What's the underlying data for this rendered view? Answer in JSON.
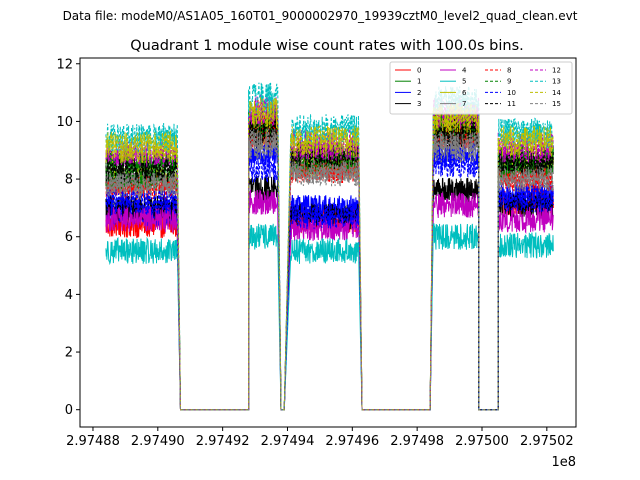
{
  "suptitle": "Data file: modeM0/AS1A05_160T01_9000002970_19939cztM0_level2_quad_clean.evt",
  "chart_data": {
    "type": "line",
    "title": "Quadrant 1 module wise count rates with 100.0s bins.",
    "xlabel": "",
    "ylabel": "",
    "x_offset_label": "1e8",
    "xlim": [
      2.974876,
      2.975029
    ],
    "ylim": [
      -0.6,
      12.2
    ],
    "x_ticks": [
      2.97488,
      2.9749,
      2.97492,
      2.97494,
      2.97496,
      2.97498,
      2.975,
      2.97502
    ],
    "x_tick_labels": [
      "2.97488",
      "2.97490",
      "2.97492",
      "2.97494",
      "2.97496",
      "2.97498",
      "2.97500",
      "2.97502"
    ],
    "y_ticks": [
      0,
      2,
      4,
      6,
      8,
      10,
      12
    ],
    "y_tick_labels": [
      "0",
      "2",
      "4",
      "6",
      "8",
      "10",
      "12"
    ],
    "grid": false,
    "legend": {
      "position": "top-right",
      "columns": 4
    },
    "segments": [
      {
        "start": 2.974884,
        "end": 2.974906,
        "on": true
      },
      {
        "start": 2.974907,
        "end": 2.974928,
        "on": false
      },
      {
        "start": 2.974928,
        "end": 2.974937,
        "on": true
      },
      {
        "start": 2.974938,
        "end": 2.974939,
        "on": false
      },
      {
        "start": 2.974941,
        "end": 2.974962,
        "on": true
      },
      {
        "start": 2.974963,
        "end": 2.974984,
        "on": false
      },
      {
        "start": 2.974985,
        "end": 2.974999,
        "on": true
      },
      {
        "start": 2.974999,
        "end": 2.975005,
        "on": false
      },
      {
        "start": 2.975005,
        "end": 2.975022,
        "on": true
      }
    ],
    "series": [
      {
        "name": "0",
        "color": "#ff0000",
        "dash": false,
        "level": [
          6.4,
          9.6,
          6.6,
          9.6,
          7.2
        ]
      },
      {
        "name": "1",
        "color": "#008000",
        "dash": false,
        "level": [
          8.6,
          10.0,
          8.9,
          9.9,
          8.8
        ]
      },
      {
        "name": "2",
        "color": "#0000ff",
        "dash": false,
        "level": [
          6.8,
          8.8,
          7.0,
          8.9,
          7.5
        ]
      },
      {
        "name": "3",
        "color": "#000000",
        "dash": false,
        "level": [
          7.0,
          7.7,
          6.7,
          7.6,
          7.1
        ]
      },
      {
        "name": "4",
        "color": "#c000c0",
        "dash": false,
        "level": [
          6.6,
          7.2,
          6.3,
          7.1,
          6.6
        ]
      },
      {
        "name": "5",
        "color": "#00bfbf",
        "dash": false,
        "level": [
          5.5,
          6.0,
          5.5,
          6.0,
          5.7
        ]
      },
      {
        "name": "6",
        "color": "#bfbf00",
        "dash": false,
        "level": [
          8.0,
          9.7,
          8.5,
          9.8,
          8.4
        ]
      },
      {
        "name": "7",
        "color": "#808080",
        "dash": false,
        "level": [
          7.9,
          9.5,
          8.4,
          9.5,
          8.2
        ]
      },
      {
        "name": "8",
        "color": "#ff0000",
        "dash": true,
        "level": [
          7.7,
          9.7,
          8.3,
          9.6,
          8.0
        ]
      },
      {
        "name": "9",
        "color": "#008000",
        "dash": true,
        "level": [
          8.1,
          9.9,
          8.6,
          9.8,
          8.5
        ]
      },
      {
        "name": "10",
        "color": "#0000ff",
        "dash": true,
        "level": [
          7.2,
          8.3,
          6.7,
          8.5,
          7.3
        ]
      },
      {
        "name": "11",
        "color": "#000000",
        "dash": true,
        "level": [
          8.3,
          9.6,
          8.8,
          9.6,
          8.6
        ]
      },
      {
        "name": "12",
        "color": "#c000c0",
        "dash": true,
        "level": [
          8.9,
          10.4,
          9.2,
          10.3,
          9.1
        ]
      },
      {
        "name": "13",
        "color": "#00bfbf",
        "dash": true,
        "level": [
          9.4,
          10.8,
          9.7,
          10.7,
          9.6
        ]
      },
      {
        "name": "14",
        "color": "#bfbf00",
        "dash": true,
        "level": [
          9.1,
          10.3,
          9.3,
          10.1,
          9.3
        ]
      },
      {
        "name": "15",
        "color": "#808080",
        "dash": true,
        "level": [
          7.8,
          9.2,
          8.2,
          9.1,
          8.0
        ]
      }
    ]
  }
}
